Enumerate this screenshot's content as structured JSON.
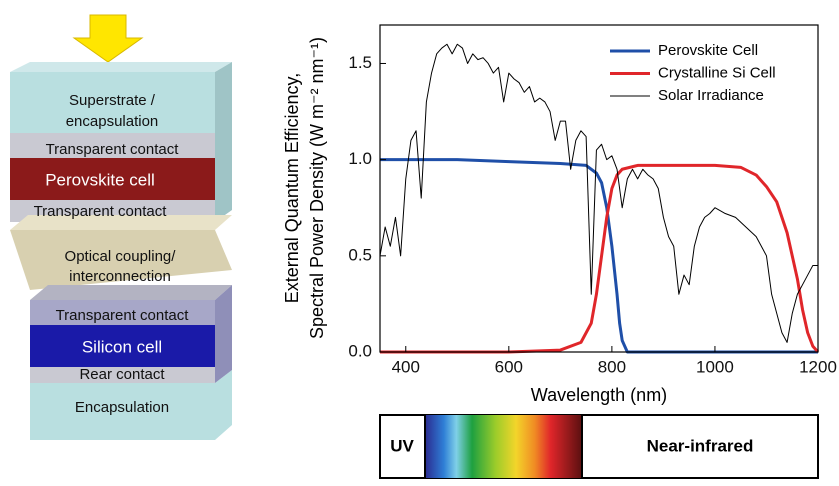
{
  "chart_data": {
    "type": "line",
    "ylabel": [
      "External Quantum Efficiency,",
      "Spectral Power Density (W m⁻² nm⁻¹)"
    ],
    "xlabel": "Wavelength (nm)",
    "xlim": [
      350,
      1200
    ],
    "xticks": [
      400,
      600,
      800,
      1000,
      1200
    ],
    "ylim": [
      0,
      1.7
    ],
    "yticks": [
      {
        "value": 0,
        "label": "0.0"
      },
      0.5,
      {
        "value": 1,
        "label": "1.0"
      },
      1.5
    ],
    "legend": "top-right",
    "series": [
      {
        "name": "Perovskite Cell",
        "color": "#1f4fa8",
        "width": 3,
        "x": [
          350,
          400,
          500,
          600,
          700,
          750,
          770,
          780,
          790,
          800,
          810,
          815,
          820,
          830,
          900,
          1000,
          1100,
          1200
        ],
        "values": [
          1.0,
          1.0,
          1.0,
          0.99,
          0.98,
          0.97,
          0.93,
          0.88,
          0.75,
          0.55,
          0.3,
          0.15,
          0.06,
          0,
          0,
          0,
          0,
          0
        ]
      },
      {
        "name": "Crystalline Si Cell",
        "color": "#e0262a",
        "width": 3,
        "x": [
          350,
          600,
          700,
          740,
          760,
          770,
          780,
          790,
          800,
          810,
          820,
          850,
          900,
          1000,
          1050,
          1080,
          1100,
          1120,
          1140,
          1160,
          1170,
          1180,
          1190,
          1200
        ],
        "values": [
          0,
          0,
          0.01,
          0.05,
          0.15,
          0.3,
          0.5,
          0.7,
          0.85,
          0.92,
          0.95,
          0.97,
          0.97,
          0.97,
          0.96,
          0.92,
          0.86,
          0.78,
          0.62,
          0.38,
          0.22,
          0.1,
          0.03,
          0
        ]
      },
      {
        "name": "Solar Irradiance",
        "color": "#000000",
        "width": 1,
        "x": [
          350,
          360,
          370,
          380,
          390,
          400,
          410,
          420,
          430,
          440,
          450,
          460,
          470,
          480,
          490,
          500,
          510,
          520,
          530,
          540,
          550,
          560,
          570,
          580,
          590,
          600,
          610,
          620,
          630,
          640,
          650,
          660,
          670,
          680,
          690,
          700,
          710,
          720,
          730,
          740,
          750,
          760,
          770,
          780,
          790,
          800,
          810,
          820,
          830,
          840,
          850,
          860,
          870,
          880,
          890,
          900,
          910,
          920,
          930,
          940,
          950,
          960,
          970,
          980,
          990,
          1000,
          1020,
          1040,
          1060,
          1080,
          1100,
          1110,
          1120,
          1130,
          1140,
          1150,
          1160,
          1170,
          1180,
          1190,
          1200
        ],
        "values": [
          0.5,
          0.65,
          0.55,
          0.7,
          0.5,
          0.9,
          1.1,
          1.15,
          0.8,
          1.3,
          1.45,
          1.55,
          1.58,
          1.6,
          1.55,
          1.6,
          1.58,
          1.5,
          1.55,
          1.52,
          1.53,
          1.5,
          1.45,
          1.48,
          1.3,
          1.45,
          1.42,
          1.4,
          1.35,
          1.38,
          1.3,
          1.32,
          1.3,
          1.25,
          1.1,
          1.2,
          1.2,
          0.95,
          1.1,
          1.15,
          1.12,
          0.3,
          1.05,
          1.08,
          1.0,
          1.02,
          0.95,
          0.75,
          0.9,
          0.95,
          0.9,
          0.95,
          0.92,
          0.9,
          0.85,
          0.7,
          0.6,
          0.55,
          0.3,
          0.4,
          0.35,
          0.55,
          0.65,
          0.7,
          0.72,
          0.75,
          0.72,
          0.7,
          0.65,
          0.6,
          0.5,
          0.3,
          0.2,
          0.1,
          0.05,
          0.2,
          0.3,
          0.35,
          0.4,
          0.45,
          0.45
        ]
      }
    ]
  },
  "layers": [
    [
      "Superstrate /",
      "encapsulation"
    ],
    [
      "Transparent contact"
    ],
    [
      "Perovskite cell"
    ],
    [
      "Transparent contact"
    ],
    [
      "Optical coupling/",
      "interconnection"
    ],
    [
      "Transparent contact"
    ],
    [
      "Silicon cell"
    ],
    [
      "Rear contact"
    ],
    [
      "Encapsulation"
    ]
  ],
  "spectrum": {
    "uv": "UV",
    "nir": "Near-infrared"
  }
}
